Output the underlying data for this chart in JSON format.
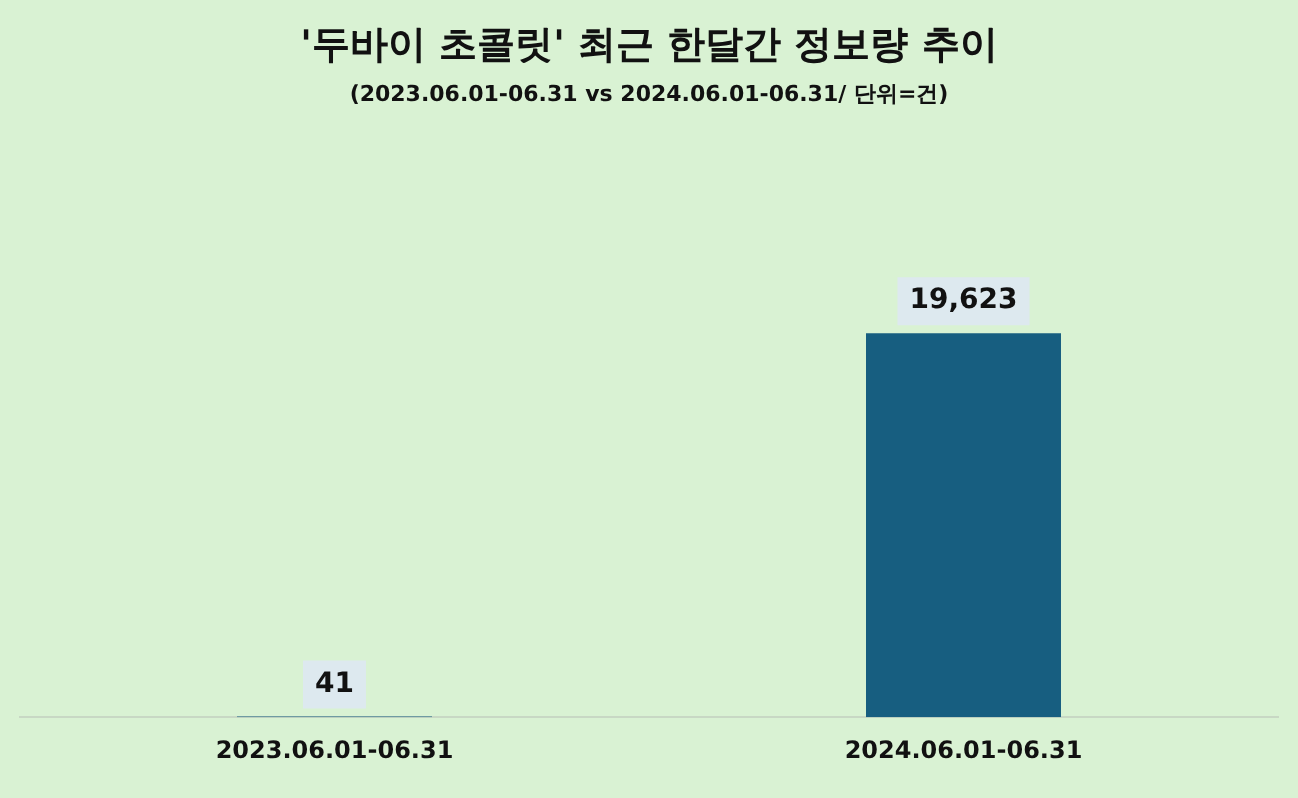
{
  "chart_data": {
    "type": "bar",
    "title": "'두바이 초콜릿' 최근 한달간 정보량 추이",
    "subtitle": "(2023.06.01-06.31 vs 2024.06.01-06.31/ 단위=건)",
    "categories": [
      "2023.06.01-06.31",
      "2024.06.01-06.31"
    ],
    "values": [
      41,
      19623
    ],
    "color": "#175e80",
    "value_labels": [
      "41",
      "19,623"
    ],
    "grid": false,
    "legend": false
  }
}
